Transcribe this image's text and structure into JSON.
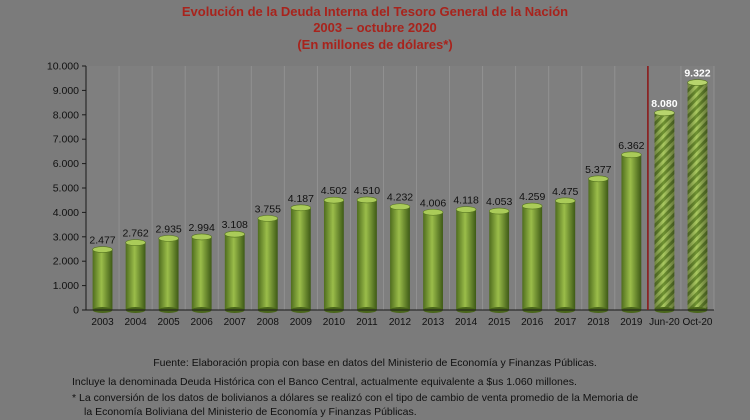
{
  "title_line1": "Evolución de la Deuda Interna del Tesoro General de la Nación",
  "title_line2": "2003 – octubre 2020",
  "title_line3": "(En millones de dólares*)",
  "colors": {
    "title": "#a8231c",
    "bar_light": "#9bbd4a",
    "bar_dark": "#4f6d1e",
    "divider": "#8b1a1a"
  },
  "chart_data": {
    "type": "bar",
    "categories": [
      "2003",
      "2004",
      "2005",
      "2006",
      "2007",
      "2008",
      "2009",
      "2010",
      "2011",
      "2012",
      "2013",
      "2014",
      "2015",
      "2016",
      "2017",
      "2018",
      "2019",
      "Jun-20",
      "Oct-20"
    ],
    "values": [
      2477,
      2762,
      2935,
      2994,
      3108,
      3755,
      4187,
      4502,
      4510,
      4232,
      4006,
      4118,
      4053,
      4259,
      4475,
      5377,
      6362,
      8080,
      9322
    ],
    "data_labels": [
      "2.477",
      "2.762",
      "2.935",
      "2.994",
      "3.108",
      "3.755",
      "4.187",
      "4.502",
      "4.510",
      "4.232",
      "4.006",
      "4.118",
      "4.053",
      "4.259",
      "4.475",
      "5.377",
      "6.362",
      "8.080",
      "9.322"
    ],
    "hatched_categories": [
      "Jun-20",
      "Oct-20"
    ],
    "ylim": [
      0,
      10000
    ],
    "yticks": [
      0,
      1000,
      2000,
      3000,
      4000,
      5000,
      6000,
      7000,
      8000,
      9000,
      10000
    ],
    "ytick_labels": [
      "0",
      "1.000",
      "2.000",
      "3.000",
      "4.000",
      "5.000",
      "6.000",
      "7.000",
      "8.000",
      "9.000",
      "10.000"
    ],
    "grid": "vertical",
    "legend": "none"
  },
  "notes": {
    "source": "Fuente: Elaboración propia con base en datos del Ministerio de Economía y Finanzas Públicas.",
    "includes": "Incluye la denominada Deuda Histórica con el Banco Central, actualmente equivalente a $us 1.060 millones.",
    "conversion_line1": "* La conversión de los datos de bolivianos a dólares se realizó con el tipo de cambio de venta promedio de la Memoria de",
    "conversion_line2": "la Economía Boliviana del Ministerio de Economía y Finanzas Públicas."
  }
}
